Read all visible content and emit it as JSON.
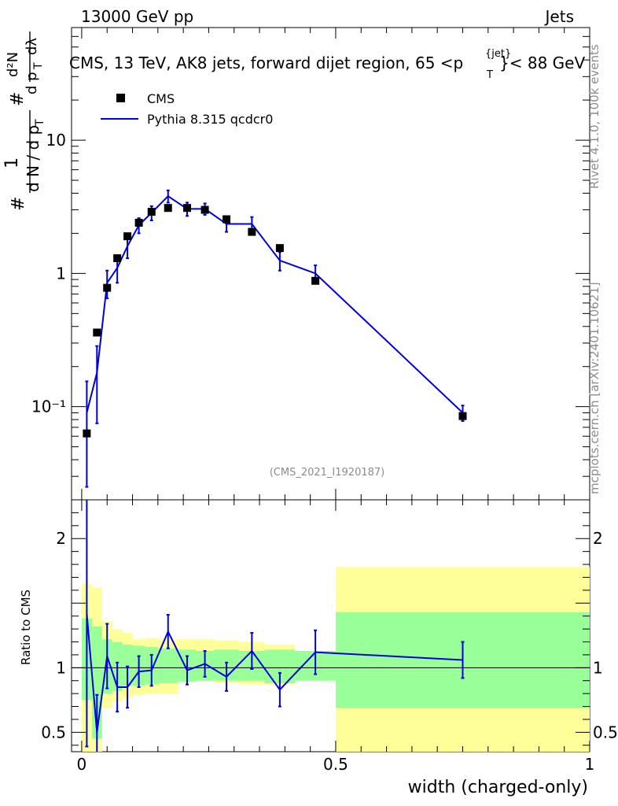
{
  "chart_data": {
    "type": "scatter",
    "header_left": "13000 GeV pp",
    "header_right": "Jets",
    "title_main": "CMS, 13 TeV, AK8 jets, forward dijet region, 65 <p",
    "title_sub": "T",
    "title_sup": "{jet}",
    "title_end": "}< 88 GeV",
    "analysis_tag": "(CMS_2021_I1920187)",
    "side_top": "Rivet 4.1.0,  100k events",
    "side_bottom": "mcplots.cern.ch [arXiv:2401.10621]",
    "xlabel": "width (charged-only)",
    "ylabel_ratio": "Ratio to CMS",
    "xlim": [
      -0.02,
      1.0
    ],
    "main_ylim": [
      0.02,
      70
    ],
    "ratio_ylim": [
      0.35,
      2.3
    ],
    "x_ticks": [
      {
        "v": 0,
        "label": "0"
      },
      {
        "v": 0.5,
        "label": "0.5"
      },
      {
        "v": 1,
        "label": "1"
      }
    ],
    "main_y_ticks": [
      {
        "v": 0.1,
        "label": "10⁻¹"
      },
      {
        "v": 1,
        "label": "1"
      },
      {
        "v": 10,
        "label": "10"
      }
    ],
    "ratio_y_ticks": [
      {
        "v": 0.5,
        "label": "0.5"
      },
      {
        "v": 1,
        "label": "1"
      },
      {
        "v": 2,
        "label": "2"
      }
    ],
    "legend": [
      {
        "name": "CMS",
        "kind": "marker"
      },
      {
        "name": "Pythia 8.315 qcdcr0",
        "kind": "line"
      }
    ],
    "bins": [
      0,
      0.02,
      0.04,
      0.06,
      0.08,
      0.1,
      0.125,
      0.15,
      0.19,
      0.225,
      0.26,
      0.31,
      0.36,
      0.42,
      0.5,
      1.0
    ],
    "x": [
      0.01,
      0.03,
      0.05,
      0.07,
      0.09,
      0.1125,
      0.1375,
      0.17,
      0.2075,
      0.2425,
      0.285,
      0.335,
      0.39,
      0.46,
      0.75
    ],
    "series": [
      {
        "name": "CMS",
        "values": [
          0.063,
          0.36,
          0.78,
          1.3,
          1.9,
          2.4,
          2.9,
          3.1,
          3.1,
          3.0,
          2.55,
          2.05,
          1.55,
          0.88,
          0.085
        ]
      },
      {
        "name": "Pythia 8.315 qcdcr0",
        "values": [
          0.09,
          0.18,
          0.85,
          1.1,
          1.6,
          2.3,
          2.85,
          3.8,
          3.05,
          3.05,
          2.35,
          2.35,
          1.25,
          1.0,
          0.09
        ],
        "err_low": [
          0.065,
          0.105,
          0.2,
          0.25,
          0.3,
          0.3,
          0.35,
          0.4,
          0.35,
          0.3,
          0.3,
          0.3,
          0.2,
          0.15,
          0.012
        ],
        "err_high": [
          0.065,
          0.105,
          0.2,
          0.25,
          0.3,
          0.3,
          0.35,
          0.4,
          0.35,
          0.3,
          0.3,
          0.3,
          0.2,
          0.15,
          0.012
        ]
      }
    ],
    "ratio": {
      "values": [
        1.42,
        0.5,
        1.09,
        0.85,
        0.85,
        0.97,
        0.98,
        1.28,
        0.98,
        1.03,
        0.93,
        1.13,
        0.83,
        1.12,
        1.06
      ],
      "err_low": [
        1.03,
        0.29,
        0.25,
        0.19,
        0.16,
        0.12,
        0.12,
        0.13,
        0.11,
        0.1,
        0.11,
        0.14,
        0.13,
        0.17,
        0.14
      ],
      "err_high": [
        1.03,
        0.29,
        0.25,
        0.19,
        0.16,
        0.12,
        0.12,
        0.13,
        0.11,
        0.1,
        0.11,
        0.14,
        0.13,
        0.17,
        0.14
      ],
      "band_inner": [
        [
          0.75,
          1.38
        ],
        [
          0.45,
          1.32
        ],
        [
          0.8,
          1.22
        ],
        [
          0.82,
          1.2
        ],
        [
          0.86,
          1.18
        ],
        [
          0.86,
          1.17
        ],
        [
          0.87,
          1.16
        ],
        [
          0.88,
          1.15
        ],
        [
          0.89,
          1.14
        ],
        [
          0.9,
          1.13
        ],
        [
          0.9,
          1.14
        ],
        [
          0.9,
          1.13
        ],
        [
          0.88,
          1.14
        ],
        [
          0.9,
          1.13
        ],
        [
          0.69,
          1.43
        ]
      ],
      "band_outer": [
        [
          0.35,
          1.65
        ],
        [
          0.35,
          1.62
        ],
        [
          0.69,
          1.36
        ],
        [
          0.74,
          1.3
        ],
        [
          0.76,
          1.27
        ],
        [
          0.79,
          1.22
        ],
        [
          0.8,
          1.23
        ],
        [
          0.8,
          1.22
        ],
        [
          0.9,
          1.22
        ],
        [
          0.9,
          1.22
        ],
        [
          0.88,
          1.21
        ],
        [
          0.87,
          1.2
        ],
        [
          0.87,
          1.18
        ],
        [
          0.93,
          1.13
        ],
        [
          0.35,
          1.78
        ]
      ]
    },
    "colors": {
      "mc": "#0000dd",
      "data": "#000000",
      "band_inner": "#99ff99",
      "band_outer": "#ffff99",
      "side": "#8c8c8c"
    }
  }
}
